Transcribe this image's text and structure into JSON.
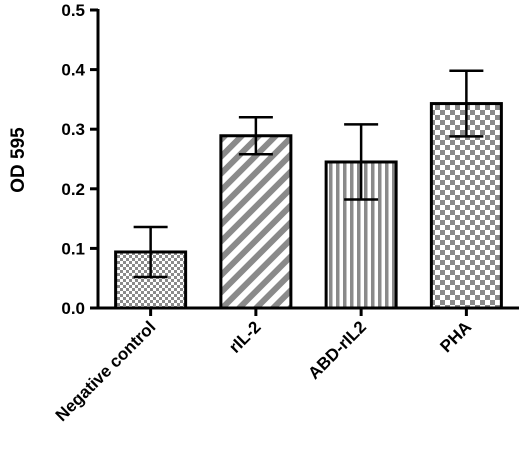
{
  "chart_data": {
    "type": "bar",
    "title": "",
    "xlabel": "",
    "ylabel": "OD 595",
    "ylim": [
      0,
      0.5
    ],
    "yticks": [
      "0.0",
      "0.1",
      "0.2",
      "0.3",
      "0.4",
      "0.5"
    ],
    "categories": [
      "Negative control",
      "rIL-2",
      "ABD-rIL2",
      "PHA"
    ],
    "values": [
      0.094,
      0.289,
      0.245,
      0.343
    ],
    "errors": [
      0.042,
      0.031,
      0.063,
      0.055
    ],
    "patterns": [
      "fine-checker",
      "diagonal-stripes",
      "vertical-stripes",
      "coarse-checker"
    ],
    "grid": false,
    "legend": "none"
  }
}
